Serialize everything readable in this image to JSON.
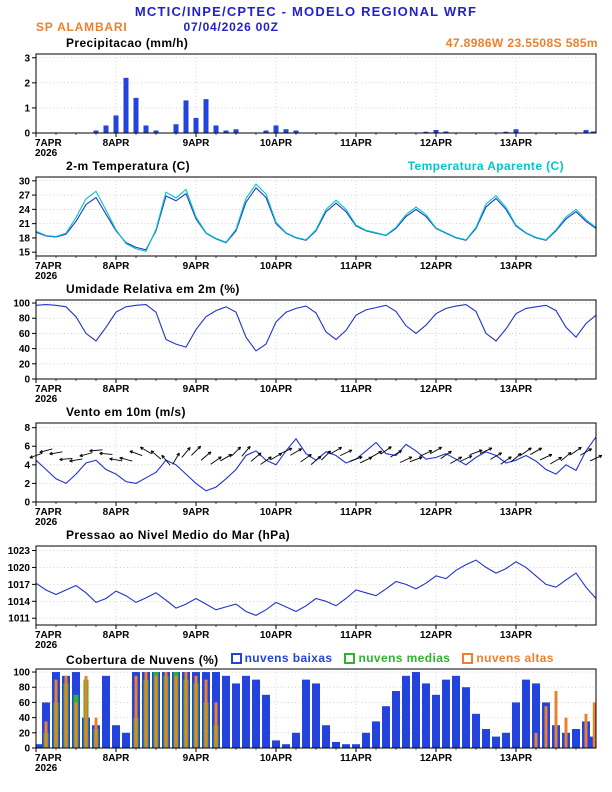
{
  "header": {
    "title": "MCTIC/INPE/CPTEC - MODELO REGIONAL WRF",
    "station": "SP ALAMBARI",
    "run": "07/04/2026 00Z",
    "location_note": "47.8986W 23.5508S 585m",
    "colors": {
      "title_blue": "#2222cc",
      "orange": "#ee7f2d",
      "cyan": "#00c8c8"
    }
  },
  "x_axis": {
    "start_day": 7,
    "end_day": 14,
    "step_hours": 3,
    "tick_days": [
      7,
      8,
      9,
      10,
      11,
      12,
      13
    ],
    "tick_labels": [
      "7APR",
      "8APR",
      "9APR",
      "10APR",
      "11APR",
      "12APR",
      "13APR"
    ],
    "year_label": "2026"
  },
  "chart_data": [
    {
      "type": "bar",
      "title": "Precipitacao (mm/h)",
      "ylabel": "",
      "ylim": [
        0,
        3.15
      ],
      "yticks": [
        0,
        1,
        2,
        3
      ],
      "color": "#2244dd",
      "values": [
        0,
        0,
        0,
        0,
        0,
        0,
        0.1,
        0.3,
        0.7,
        2.2,
        1.4,
        0.3,
        0.1,
        0,
        0.35,
        1.3,
        0.6,
        1.35,
        0.3,
        0.1,
        0.15,
        0,
        0,
        0.1,
        0.3,
        0.15,
        0.1,
        0,
        0,
        0,
        0,
        0,
        0,
        0,
        0,
        0,
        0,
        0,
        0,
        0.05,
        0.12,
        0.06,
        0,
        0,
        0,
        0,
        0,
        0.05,
        0.15,
        0,
        0,
        0,
        0,
        0,
        0,
        0.12,
        0.06
      ]
    },
    {
      "type": "line",
      "title": "2-m Temperatura (C)",
      "ylim": [
        14.2,
        30.8
      ],
      "yticks": [
        15,
        18,
        21,
        24,
        27,
        30
      ],
      "series": [
        {
          "name": "2-m Temperatura (C)",
          "color": "#2233cc",
          "values": [
            19.2,
            18.4,
            18.2,
            18.8,
            21.5,
            25,
            26.5,
            23,
            19.5,
            17,
            16,
            15.5,
            19.5,
            26.8,
            25.8,
            27.3,
            22,
            19,
            17.8,
            17,
            19.5,
            25.5,
            28.5,
            26.5,
            21,
            19,
            18,
            17.5,
            19.5,
            23.5,
            25.3,
            23.5,
            20.5,
            19.5,
            19,
            18.5,
            20,
            22.5,
            24,
            22.5,
            20,
            19,
            18,
            17.5,
            20,
            24.5,
            26.3,
            24,
            20.5,
            19,
            18,
            17.5,
            19.5,
            22,
            23.5,
            21.5,
            20
          ]
        },
        {
          "name": "Temperatura Aparente (C)",
          "color": "#00c8c8",
          "values": [
            19.4,
            18.5,
            18.3,
            19,
            22.3,
            26.2,
            27.8,
            23.8,
            19.7,
            16.8,
            15.7,
            15.2,
            19.8,
            27.6,
            26.4,
            28.2,
            22.4,
            19.1,
            17.9,
            17.1,
            19.8,
            26.3,
            29.3,
            27.2,
            21.3,
            19.1,
            18.1,
            17.6,
            19.7,
            24,
            25.9,
            24,
            20.7,
            19.6,
            19.1,
            18.6,
            20.2,
            22.9,
            24.5,
            22.9,
            20.1,
            19.1,
            18.1,
            17.6,
            20.2,
            25.1,
            26.9,
            24.4,
            20.7,
            19.1,
            18.1,
            17.6,
            19.7,
            22.4,
            24,
            21.8,
            20.2
          ]
        }
      ]
    },
    {
      "type": "line",
      "title": "Umidade Relativa em 2m (%)",
      "ylim": [
        0,
        104
      ],
      "yticks": [
        0,
        20,
        40,
        60,
        80,
        100
      ],
      "series": [
        {
          "name": "Umidade Relativa",
          "color": "#2233cc",
          "values": [
            97,
            98,
            97,
            95,
            82,
            60,
            50,
            68,
            88,
            95,
            97,
            98,
            88,
            52,
            46,
            42,
            65,
            82,
            90,
            95,
            88,
            55,
            37,
            46,
            75,
            88,
            93,
            96,
            87,
            62,
            52,
            64,
            84,
            91,
            94,
            97,
            89,
            70,
            60,
            71,
            86,
            93,
            96,
            98,
            89,
            60,
            50,
            66,
            86,
            93,
            95,
            97,
            90,
            68,
            55,
            73,
            84
          ]
        }
      ]
    },
    {
      "type": "line",
      "title": "Vento em 10m (m/s)",
      "ylim": [
        0,
        8.5
      ],
      "yticks": [
        0,
        2,
        4,
        6,
        8
      ],
      "series": [
        {
          "name": "Velocidade do vento",
          "color": "#2233cc",
          "values": [
            4.5,
            3.5,
            2.5,
            2,
            3,
            4.2,
            4.5,
            3.5,
            3,
            2.2,
            2,
            2.6,
            3.2,
            4.5,
            4,
            3,
            2,
            1.2,
            1.6,
            2.5,
            3.5,
            5,
            5.5,
            4.5,
            4,
            5.5,
            6.8,
            5.2,
            4.5,
            5.4,
            5,
            4.2,
            4.6,
            5.5,
            6.4,
            5.2,
            5,
            6.2,
            5.5,
            4.6,
            4.8,
            5.2,
            4.6,
            4,
            4.8,
            5.4,
            5,
            4.2,
            4.5,
            5,
            4.4,
            3.5,
            3,
            4,
            3.4,
            5.5,
            7
          ]
        }
      ],
      "barbs": {
        "base_value": 5,
        "color": "#000000",
        "dir_deg": [
          200,
          195,
          190,
          185,
          190,
          195,
          185,
          175,
          170,
          165,
          160,
          150,
          140,
          130,
          60,
          50,
          45,
          40,
          35,
          30,
          45,
          50,
          40,
          35,
          30,
          25,
          30,
          35,
          40,
          45,
          30,
          25,
          20,
          25,
          30,
          35,
          30,
          25,
          20,
          25,
          30,
          35,
          30,
          25,
          20,
          25,
          30,
          35,
          40,
          35,
          30,
          25,
          30,
          40,
          35,
          30,
          25
        ]
      }
    },
    {
      "type": "line",
      "title": "Pressao ao Nivel Medio do Mar (hPa)",
      "ylim": [
        1009.8,
        1023.8
      ],
      "yticks": [
        1011,
        1014,
        1017,
        1020,
        1023
      ],
      "series": [
        {
          "name": "Pressao ao nivel medio do mar",
          "color": "#2233cc",
          "values": [
            1017.2,
            1016,
            1015.2,
            1016,
            1016.8,
            1015.5,
            1013.8,
            1014.5,
            1015.8,
            1015,
            1013.8,
            1014.6,
            1015.5,
            1014.2,
            1012.8,
            1013.5,
            1014.5,
            1013.5,
            1012.5,
            1013,
            1013.5,
            1012.2,
            1011.5,
            1012.5,
            1013.8,
            1013,
            1012.2,
            1013.2,
            1014.5,
            1014,
            1013.2,
            1014.5,
            1016,
            1015.5,
            1015,
            1016.2,
            1017.5,
            1017,
            1016.2,
            1017.2,
            1018.5,
            1018,
            1019.5,
            1020.5,
            1021.3,
            1020,
            1019,
            1019.8,
            1021,
            1020,
            1018.5,
            1017,
            1016.5,
            1017.8,
            1019,
            1016.5,
            1014.5
          ]
        }
      ]
    },
    {
      "type": "bar",
      "title": "Cobertura de Nuvens (%)",
      "ylim": [
        0,
        104
      ],
      "yticks": [
        0,
        20,
        40,
        60,
        80,
        100
      ],
      "series": [
        {
          "name": "nuvens baixas",
          "color": "#2244dd",
          "values": [
            5,
            60,
            100,
            95,
            100,
            40,
            30,
            95,
            30,
            20,
            100,
            100,
            100,
            100,
            100,
            100,
            100,
            100,
            100,
            95,
            85,
            95,
            90,
            70,
            10,
            5,
            20,
            90,
            85,
            30,
            8,
            5,
            5,
            20,
            35,
            55,
            75,
            95,
            100,
            85,
            70,
            90,
            95,
            80,
            45,
            25,
            15,
            20,
            60,
            90,
            85,
            60,
            30,
            20,
            25,
            35,
            15
          ]
        },
        {
          "name": "nuvens medias",
          "color": "#2db52d",
          "values": [
            0,
            20,
            60,
            85,
            70,
            90,
            25,
            0,
            0,
            0,
            40,
            90,
            100,
            95,
            100,
            90,
            85,
            60,
            30,
            0,
            0,
            0,
            0,
            0,
            0,
            0,
            0,
            0,
            0,
            0,
            0,
            0,
            0,
            0,
            0,
            0,
            0,
            0,
            0,
            0,
            0,
            0,
            0,
            0,
            0,
            0,
            0,
            0,
            0,
            0,
            0,
            0,
            0,
            0,
            0,
            0,
            0
          ]
        },
        {
          "name": "nuvens altas",
          "color": "#ee7f2d",
          "values": [
            0,
            35,
            90,
            95,
            60,
            95,
            40,
            0,
            0,
            0,
            95,
            100,
            95,
            100,
            95,
            100,
            95,
            90,
            60,
            0,
            0,
            0,
            0,
            0,
            0,
            0,
            0,
            0,
            0,
            0,
            0,
            0,
            0,
            0,
            0,
            0,
            0,
            0,
            0,
            0,
            0,
            0,
            0,
            0,
            0,
            0,
            0,
            0,
            0,
            0,
            20,
            55,
            75,
            40,
            0,
            45,
            60
          ]
        }
      ]
    }
  ]
}
